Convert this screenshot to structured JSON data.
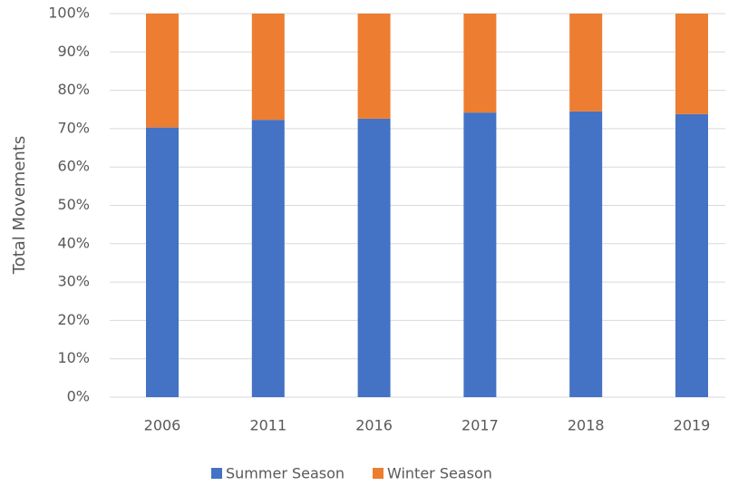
{
  "chart_data": {
    "type": "stacked_bar",
    "y_label": "Total Movements",
    "categories": [
      "2006",
      "2011",
      "2016",
      "2017",
      "2018",
      "2019"
    ],
    "series": [
      {
        "name": "Summer Season",
        "color": "#4472c4",
        "values": [
          70.3,
          72.3,
          72.6,
          74.2,
          74.5,
          73.8
        ]
      },
      {
        "name": "Winter Season",
        "color": "#ed7d31",
        "values": [
          29.7,
          27.7,
          27.4,
          25.8,
          25.5,
          26.2
        ]
      }
    ],
    "ylim": [
      0,
      100
    ],
    "yticks": [
      {
        "value": 0,
        "label": "0%"
      },
      {
        "value": 10,
        "label": "10%"
      },
      {
        "value": 20,
        "label": "20%"
      },
      {
        "value": 30,
        "label": "30%"
      },
      {
        "value": 40,
        "label": "40%"
      },
      {
        "value": 50,
        "label": "50%"
      },
      {
        "value": 60,
        "label": "60%"
      },
      {
        "value": 70,
        "label": "70%"
      },
      {
        "value": 80,
        "label": "80%"
      },
      {
        "value": 90,
        "label": "90%"
      },
      {
        "value": 100,
        "label": "100%"
      }
    ],
    "grid": true,
    "legend": "bottom"
  }
}
